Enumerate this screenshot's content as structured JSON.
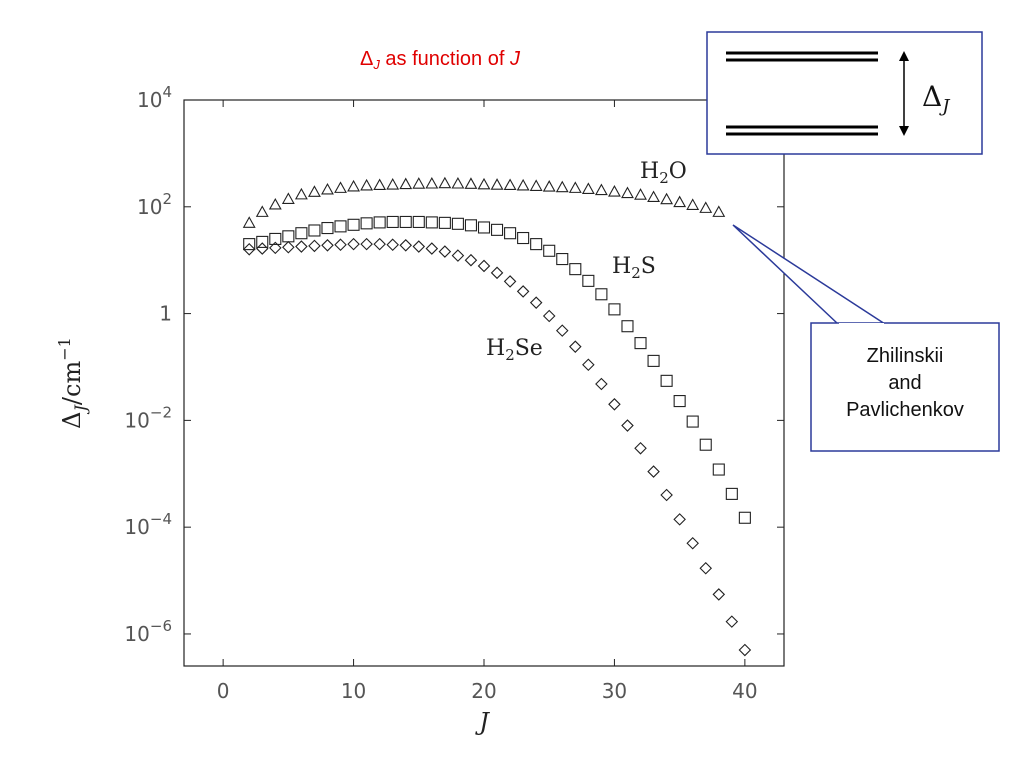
{
  "title": {
    "delta": "Δ",
    "subscript": "J",
    "middle": " as function of ",
    "variable": "J"
  },
  "chart_data": {
    "type": "scatter",
    "title": "ΔJ as function of J",
    "xlabel": "J",
    "ylabel": "ΔJ/cm−1",
    "xlim": [
      -3,
      43
    ],
    "ylim": [
      -6.6,
      4
    ],
    "yscale": "log",
    "x_ticks": [
      0,
      10,
      20,
      30,
      40
    ],
    "y_ticks": [
      {
        "exp": 4,
        "label": "10",
        "sup": "4"
      },
      {
        "exp": 2,
        "label": "10",
        "sup": "2"
      },
      {
        "exp": 0,
        "label": "1",
        "sup": ""
      },
      {
        "exp": -2,
        "label": "10",
        "sup": "−2"
      },
      {
        "exp": -4,
        "label": "10",
        "sup": "−4"
      },
      {
        "exp": -6,
        "label": "10",
        "sup": "−6"
      }
    ],
    "grid": false,
    "series": [
      {
        "name": "H2O",
        "label_main": "H",
        "label_sub": "2",
        "label_rest": "O",
        "marker": "triangle",
        "x": [
          2,
          3,
          4,
          5,
          6,
          7,
          8,
          9,
          10,
          11,
          12,
          13,
          14,
          15,
          16,
          17,
          18,
          19,
          20,
          21,
          22,
          23,
          24,
          25,
          26,
          27,
          28,
          29,
          30,
          31,
          32,
          33,
          34,
          35,
          36,
          37,
          38
        ],
        "y": [
          50,
          80,
          110,
          140,
          170,
          190,
          210,
          225,
          240,
          250,
          255,
          260,
          265,
          270,
          272,
          275,
          272,
          268,
          262,
          258,
          255,
          250,
          245,
          238,
          232,
          225,
          215,
          205,
          192,
          180,
          168,
          152,
          138,
          122,
          108,
          95,
          80
        ]
      },
      {
        "name": "H2S",
        "label_main": "H",
        "label_sub": "2",
        "label_rest": "S",
        "marker": "square",
        "x": [
          2,
          3,
          4,
          5,
          6,
          7,
          8,
          9,
          10,
          11,
          12,
          13,
          14,
          15,
          16,
          17,
          18,
          19,
          20,
          21,
          22,
          23,
          24,
          25,
          26,
          27,
          28,
          29,
          30,
          31,
          32,
          33,
          34,
          35,
          36,
          37,
          38,
          39,
          40
        ],
        "y": [
          20,
          22,
          25,
          28,
          32,
          36,
          40,
          43,
          46,
          49,
          51,
          52,
          52,
          52,
          51,
          50,
          48,
          45,
          41,
          37,
          32,
          26,
          20,
          15,
          10.5,
          6.8,
          4.1,
          2.3,
          1.2,
          0.58,
          0.28,
          0.13,
          0.055,
          0.023,
          0.0095,
          0.0035,
          0.0012,
          0.00042,
          0.00015
        ]
      },
      {
        "name": "H2Se",
        "label_main": "H",
        "label_sub": "2",
        "label_rest": "Se",
        "marker": "diamond",
        "x": [
          2,
          3,
          4,
          5,
          6,
          7,
          8,
          9,
          10,
          11,
          12,
          13,
          14,
          15,
          16,
          17,
          18,
          19,
          20,
          21,
          22,
          23,
          24,
          25,
          26,
          27,
          28,
          29,
          30,
          31,
          32,
          33,
          34,
          35,
          36,
          37,
          38,
          39,
          40
        ],
        "y": [
          16,
          16.5,
          17,
          17.5,
          18,
          18.5,
          19,
          19.5,
          20,
          20,
          20,
          19.5,
          19,
          18,
          16.5,
          14.5,
          12.2,
          10,
          7.8,
          5.8,
          4,
          2.6,
          1.6,
          0.9,
          0.48,
          0.24,
          0.11,
          0.048,
          0.02,
          0.008,
          0.003,
          0.0011,
          0.0004,
          0.00014,
          5e-05,
          1.7e-05,
          5.5e-06,
          1.7e-06,
          5e-07
        ]
      }
    ]
  },
  "callout": {
    "lines": [
      "Zhilinskii",
      "and",
      "Pavlichenkov"
    ],
    "border_color": "#2b3a9a"
  },
  "inset": {
    "delta": "Δ",
    "subscript": "J",
    "border_color": "#2b3a9a"
  }
}
